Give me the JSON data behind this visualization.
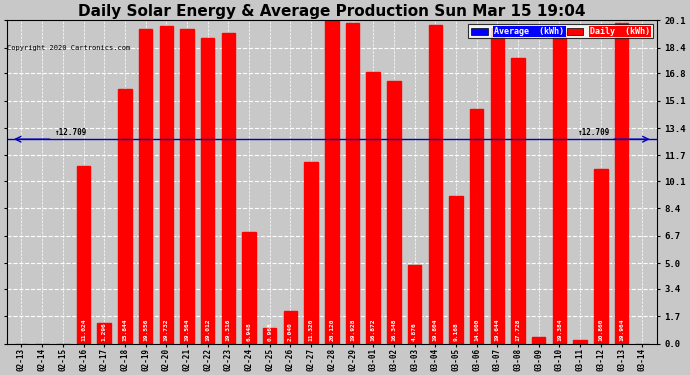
{
  "title": "Daily Solar Energy & Average Production Sun Mar 15 19:04",
  "copyright": "Copyright 2020 Cartronics.com",
  "categories": [
    "02-13",
    "02-14",
    "02-15",
    "02-16",
    "02-17",
    "02-18",
    "02-19",
    "02-20",
    "02-21",
    "02-22",
    "02-23",
    "02-24",
    "02-25",
    "02-26",
    "02-27",
    "02-28",
    "02-29",
    "03-01",
    "03-02",
    "03-03",
    "03-04",
    "03-05",
    "03-06",
    "03-07",
    "03-08",
    "03-09",
    "03-10",
    "03-11",
    "03-12",
    "03-13",
    "03-14"
  ],
  "values": [
    0.0,
    0.0,
    0.0,
    11.024,
    1.296,
    15.844,
    19.556,
    19.732,
    19.564,
    19.012,
    19.316,
    6.948,
    0.968,
    2.04,
    11.32,
    20.12,
    19.928,
    16.872,
    16.348,
    4.876,
    19.804,
    9.168,
    14.6,
    19.644,
    17.728,
    0.384,
    19.384,
    0.248,
    10.86,
    19.964,
    0.0
  ],
  "average": 12.709,
  "bar_color": "#ff0000",
  "avg_line_color": "#0000bb",
  "background_color": "#c8c8c8",
  "plot_bg_color": "#c8c8c8",
  "grid_color": "#ffffff",
  "title_fontsize": 11,
  "yticks": [
    0.0,
    1.7,
    3.4,
    5.0,
    6.7,
    8.4,
    10.1,
    11.7,
    13.4,
    15.1,
    16.8,
    18.4,
    20.1
  ],
  "ylim": [
    0.0,
    20.1
  ],
  "legend_avg_bg": "#0000ff",
  "legend_daily_bg": "#ff0000"
}
